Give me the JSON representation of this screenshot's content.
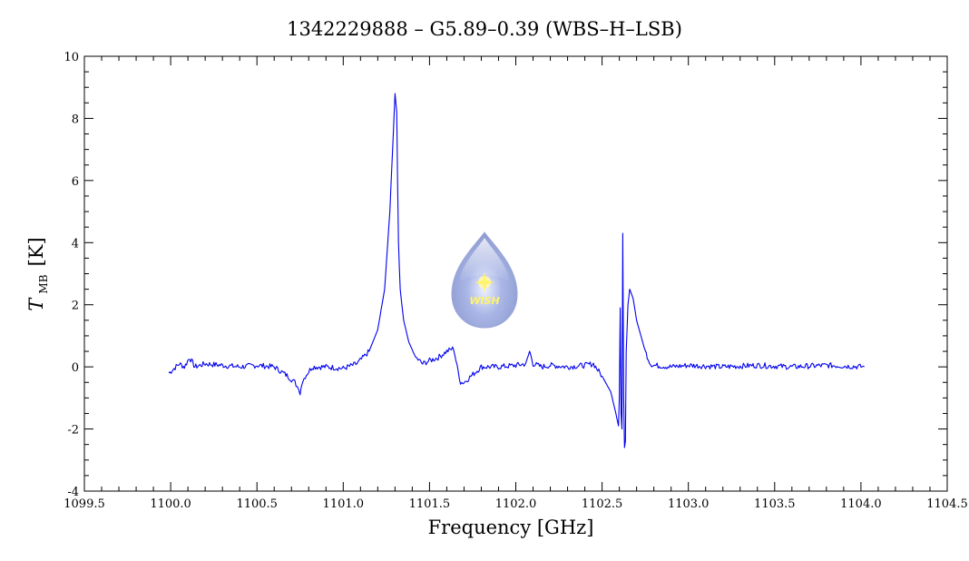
{
  "chart_data": {
    "type": "line",
    "title": "1342229888 – G5.89–0.39 (WBS–H–LSB)",
    "xlabel": "Frequency [GHz]",
    "ylabel": {
      "symbol": "T",
      "subscript": "MB",
      "unit": "[K]"
    },
    "xlim": [
      1099.5,
      1104.5
    ],
    "ylim": [
      -4,
      10
    ],
    "x_ticks": [
      "1099.5",
      "1100.0",
      "1100.5",
      "1101.0",
      "1101.5",
      "1102.0",
      "1102.5",
      "1103.0",
      "1103.5",
      "1104.0",
      "1104.5"
    ],
    "y_ticks": [
      "-4",
      "-2",
      "0",
      "2",
      "4",
      "6",
      "8",
      "10"
    ],
    "grid": false,
    "line_color": "#0000ee",
    "series": [
      {
        "x": [
          1099.99,
          1100.05,
          1100.08,
          1100.11,
          1100.14,
          1100.2,
          1100.3,
          1100.4,
          1100.5,
          1100.6,
          1100.68,
          1100.72,
          1100.74,
          1100.75,
          1100.76,
          1100.78,
          1100.82,
          1100.9,
          1101.0,
          1101.08,
          1101.15,
          1101.2,
          1101.24,
          1101.27,
          1101.29,
          1101.3,
          1101.31,
          1101.315,
          1101.32,
          1101.33,
          1101.35,
          1101.38,
          1101.42,
          1101.46,
          1101.5,
          1101.55,
          1101.6,
          1101.64,
          1101.66,
          1101.68,
          1101.7,
          1101.74,
          1101.8,
          1101.9,
          1102.0,
          1102.06,
          1102.08,
          1102.1,
          1102.15,
          1102.2,
          1102.3,
          1102.4,
          1102.45,
          1102.5,
          1102.55,
          1102.58,
          1102.595,
          1102.6,
          1102.605,
          1102.61,
          1102.615,
          1102.62,
          1102.625,
          1102.63,
          1102.635,
          1102.64,
          1102.65,
          1102.66,
          1102.68,
          1102.7,
          1102.75,
          1102.78,
          1102.8,
          1102.9,
          1103.0,
          1103.2,
          1103.4,
          1103.6,
          1103.8,
          1104.02
        ],
        "y": [
          -0.2,
          0.1,
          0.0,
          0.3,
          0.0,
          0.1,
          0.05,
          0.0,
          0.05,
          0.0,
          -0.3,
          -0.5,
          -0.7,
          -0.9,
          -0.5,
          -0.3,
          0.0,
          0.0,
          -0.05,
          0.1,
          0.5,
          1.2,
          2.5,
          5.0,
          7.5,
          8.8,
          8.2,
          6.0,
          4.0,
          2.5,
          1.5,
          0.8,
          0.3,
          0.1,
          0.2,
          0.3,
          0.5,
          0.6,
          0.0,
          -0.5,
          -0.5,
          -0.3,
          0.0,
          0.0,
          0.05,
          0.1,
          0.5,
          0.1,
          0.0,
          0.05,
          0.0,
          0.05,
          0.1,
          -0.3,
          -0.8,
          -1.5,
          -1.9,
          -1.0,
          1.9,
          -1.5,
          -2.0,
          4.3,
          -1.0,
          -2.6,
          -2.4,
          0.5,
          2.0,
          2.5,
          2.2,
          1.5,
          0.5,
          0.1,
          0.05,
          0.0,
          0.05,
          0.0,
          0.05,
          0.0,
          0.05,
          0.0
        ]
      }
    ]
  },
  "logo": {
    "text": "WISH"
  }
}
